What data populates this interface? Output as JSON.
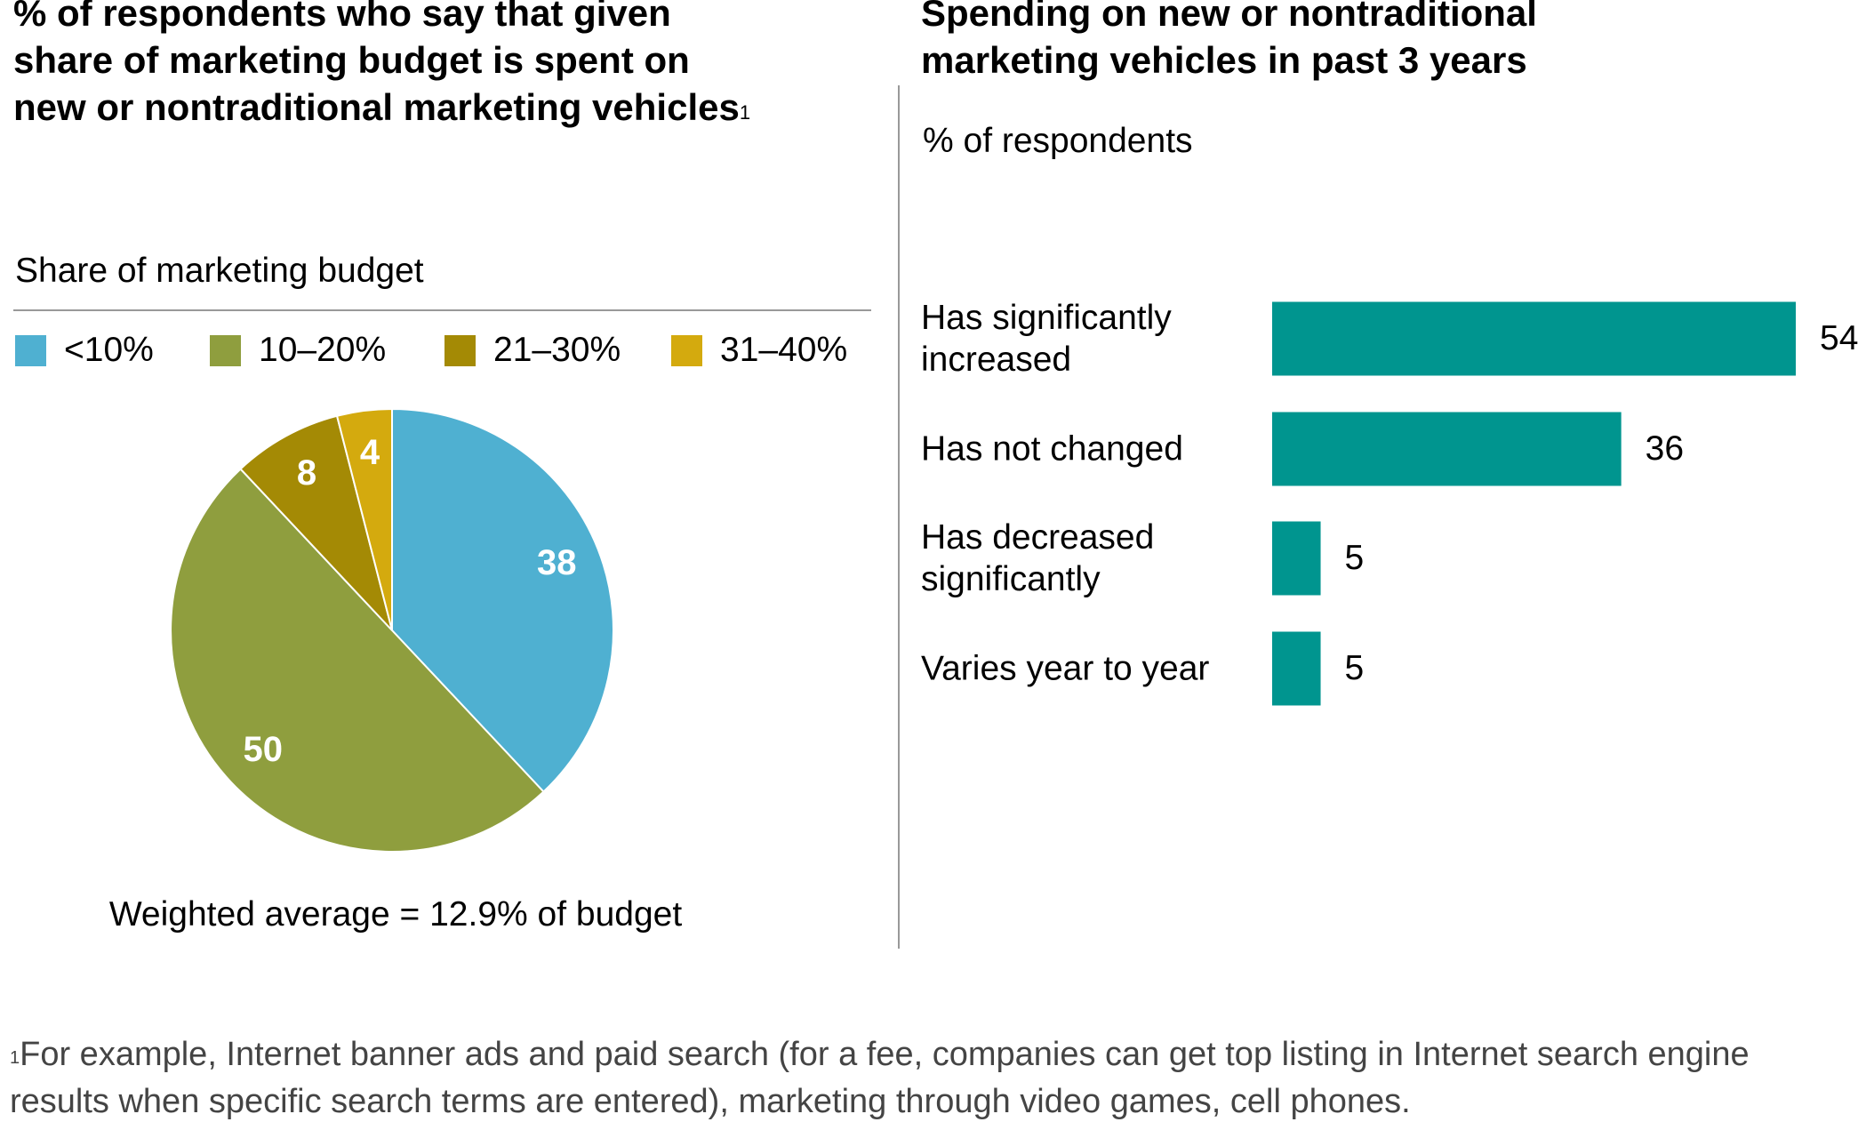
{
  "chart_data": [
    {
      "type": "pie",
      "title": "% of respondents who say that given share of marketing budget is spent on new or nontraditional marketing vehicles",
      "title_note": "1",
      "legend_title": "Share of marketing budget",
      "categories": [
        "<10%",
        "10–20%",
        "21–30%",
        "31–40%"
      ],
      "values": [
        38,
        50,
        8,
        4
      ],
      "colors": [
        "#4fb0d1",
        "#8f9e3e",
        "#a48a05",
        "#d4aa0e"
      ],
      "annotation": "Weighted average = 12.9% of budget"
    },
    {
      "type": "bar",
      "orientation": "horizontal",
      "title": "Spending on new or nontraditional marketing vehicles in past 3 years",
      "subtitle": "% of respondents",
      "categories": [
        "Has significantly increased",
        "Has not changed",
        "Has decreased significantly",
        "Varies year to year"
      ],
      "values": [
        54,
        36,
        5,
        5
      ],
      "color": "#00958f"
    }
  ],
  "footnote": {
    "marker": "1",
    "text": "For example, Internet banner ads and paid search (for a fee, companies can get top listing in Internet search engine results when specific search terms are entered), marketing through video games, cell phones."
  }
}
